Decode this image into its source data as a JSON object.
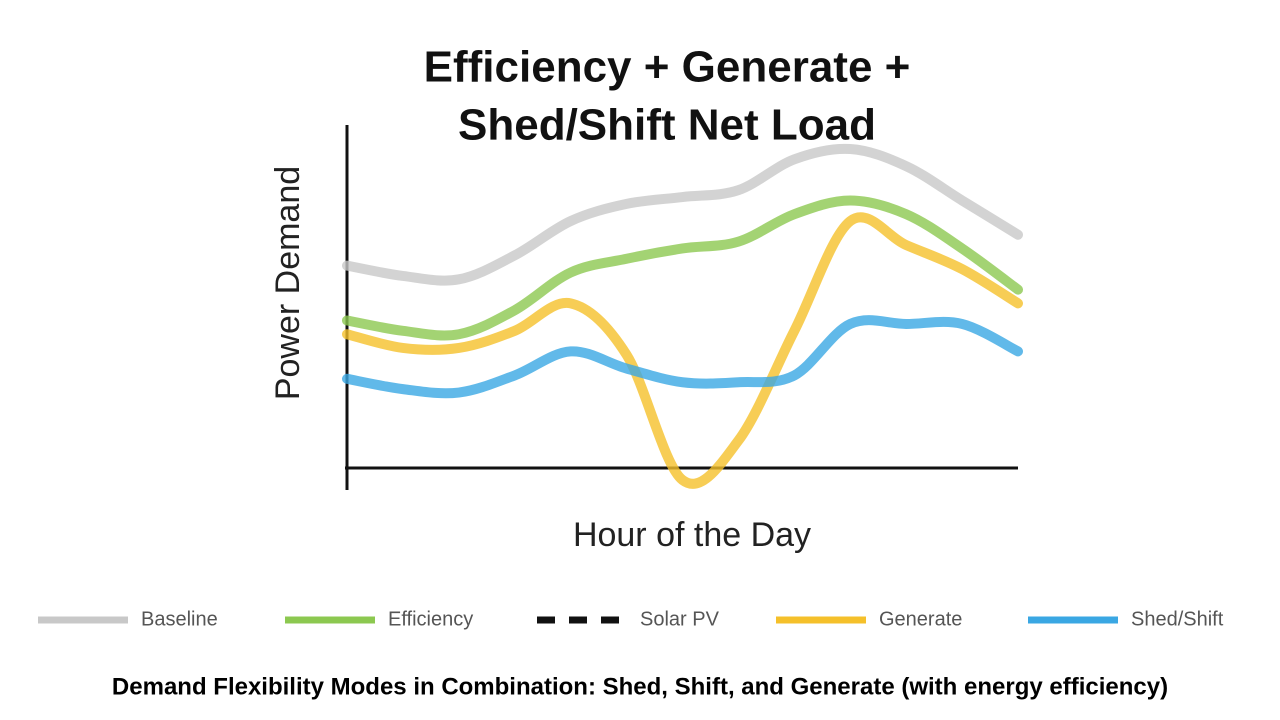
{
  "chart_data": {
    "type": "line",
    "title": [
      "Efficiency + Generate +",
      "Shed/Shift Net Load"
    ],
    "y_label": "Power Demand",
    "x_label": "Hour of the Day",
    "x": [
      0,
      2,
      4,
      6,
      8,
      10,
      12,
      14,
      16,
      18,
      20,
      22,
      24
    ],
    "xlim": [
      0,
      24
    ],
    "ylim": [
      0,
      100
    ],
    "series": [
      {
        "name": "Baseline",
        "color": "#c8c8c8",
        "values": [
          59,
          56,
          55,
          62,
          72,
          77,
          79,
          81,
          90,
          93,
          88,
          78,
          68
        ]
      },
      {
        "name": "Efficiency",
        "color": "#8cc850",
        "values": [
          43,
          40,
          39,
          46,
          57,
          61,
          64,
          66,
          74,
          78,
          74,
          64,
          52
        ]
      },
      {
        "name": "Solar PV",
        "color": "#111111",
        "dash": true,
        "values": [
          null,
          null,
          null,
          null,
          null,
          null,
          null,
          null,
          null,
          null,
          null,
          null,
          null
        ]
      },
      {
        "name": "Generate",
        "color": "#f5c02a",
        "values": [
          39,
          35,
          35,
          40,
          48,
          33,
          -3.5,
          8,
          40,
          72,
          65,
          58,
          48
        ]
      },
      {
        "name": "Shed/Shift",
        "color": "#3aa7e3",
        "values": [
          26,
          23,
          22,
          27,
          34,
          29,
          25,
          25,
          27,
          42,
          42,
          42,
          34
        ]
      }
    ],
    "caption": "Demand Flexibility Modes in Combination: Shed, Shift, and Generate (with energy efficiency)"
  }
}
